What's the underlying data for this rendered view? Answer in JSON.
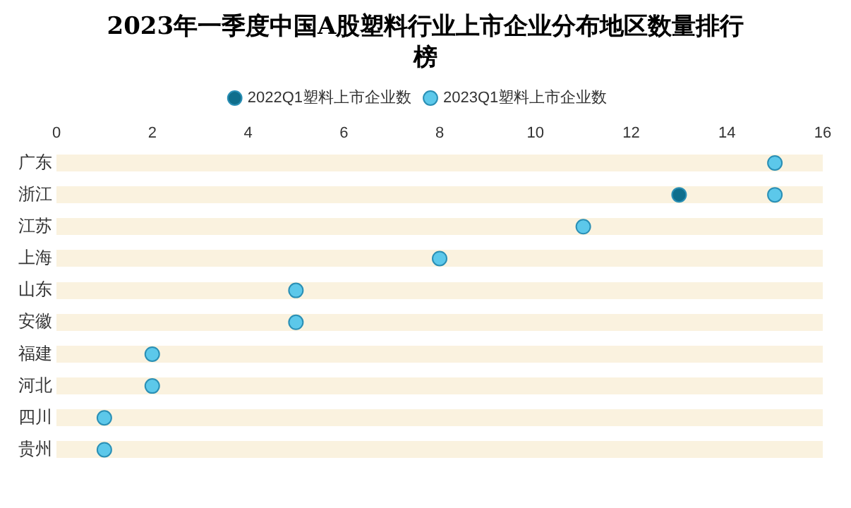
{
  "chart_data": {
    "type": "scatter",
    "orientation": "horizontal",
    "title": "2023年一季度中国A股塑料行业上市企业分布地区数量排行榜",
    "categories": [
      "广东",
      "浙江",
      "江苏",
      "上海",
      "山东",
      "安徽",
      "福建",
      "河北",
      "四川",
      "贵州"
    ],
    "series": [
      {
        "name": "2022Q1塑料上市企业数",
        "color": "#0f6e8c",
        "values": [
          null,
          13,
          null,
          null,
          null,
          null,
          null,
          null,
          null,
          null
        ]
      },
      {
        "name": "2023Q1塑料上市企业数",
        "color": "#5cc8ea",
        "values": [
          15,
          15,
          11,
          8,
          5,
          5,
          2,
          2,
          1,
          1
        ]
      }
    ],
    "xlim": [
      0,
      16
    ],
    "xticks": [
      0,
      2,
      4,
      6,
      8,
      10,
      12,
      14,
      16
    ],
    "grid": "y",
    "legend": "top",
    "marker": "circle"
  }
}
